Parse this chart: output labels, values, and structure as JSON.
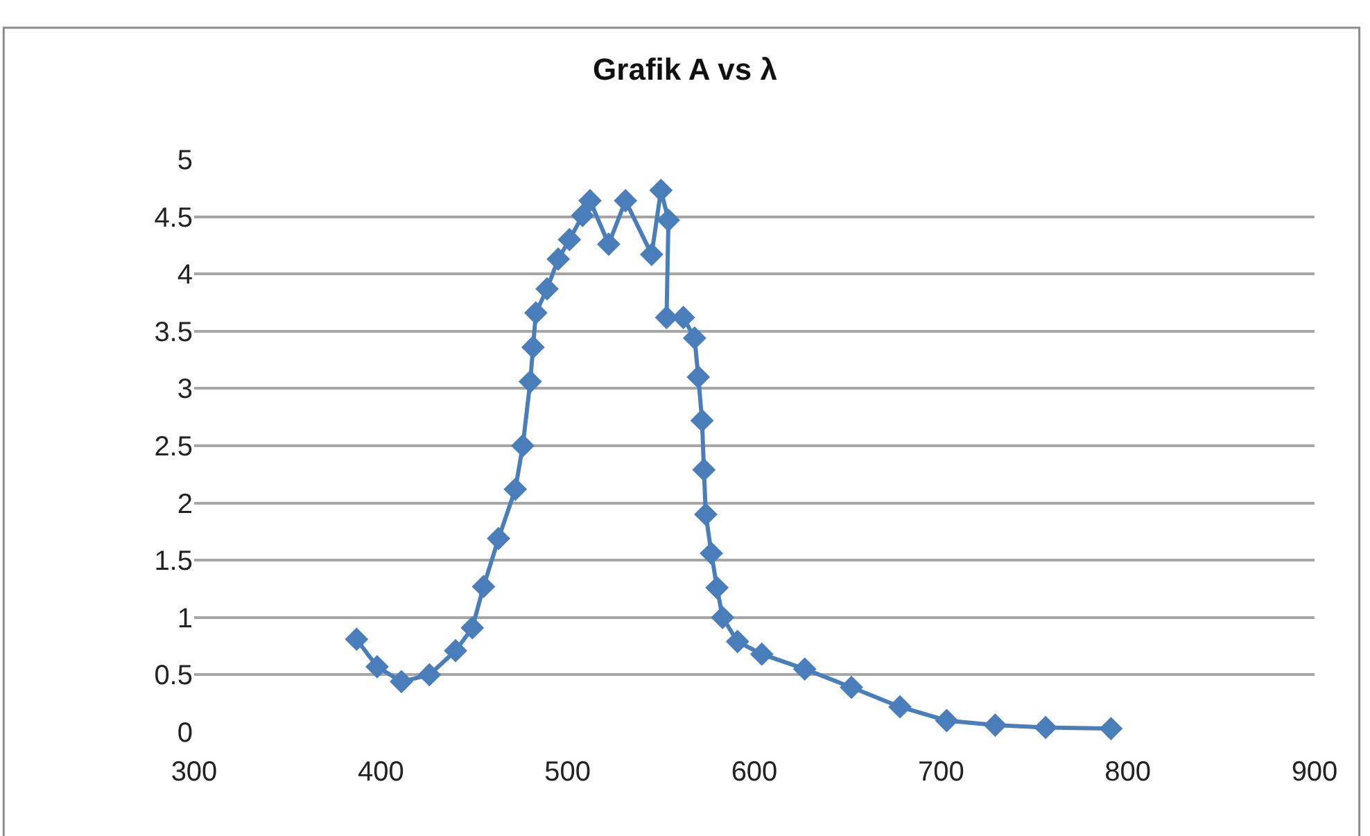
{
  "chart_data": {
    "type": "line",
    "title": "Grafik A vs λ",
    "series": [
      {
        "color": "#4a7ebb",
        "x": [
          387,
          398,
          411,
          426,
          440,
          449,
          455,
          463,
          472,
          476,
          480,
          481.5,
          483,
          489,
          495,
          501,
          508,
          512,
          522,
          531,
          545,
          550,
          554,
          553,
          562,
          568,
          570,
          572,
          573,
          574,
          577,
          580,
          583,
          591,
          604,
          627,
          652,
          678,
          703,
          729,
          756,
          791
        ],
        "values": [
          0.81,
          0.57,
          0.44,
          0.5,
          0.71,
          0.91,
          1.27,
          1.69,
          2.12,
          2.5,
          3.06,
          3.36,
          3.66,
          3.87,
          4.13,
          4.3,
          4.51,
          4.64,
          4.26,
          4.64,
          4.17,
          4.73,
          4.47,
          3.62,
          3.62,
          3.44,
          3.1,
          2.72,
          2.29,
          1.9,
          1.56,
          1.26,
          1.0,
          0.79,
          0.68,
          0.55,
          0.39,
          0.22,
          0.1,
          0.06,
          0.04,
          0.03
        ]
      }
    ],
    "xlim": [
      300,
      900
    ],
    "xticks": [
      300,
      400,
      500,
      600,
      700,
      800,
      900
    ],
    "ylim": [
      0,
      5
    ],
    "yticks": [
      0,
      0.5,
      1,
      1.5,
      2,
      2.5,
      3,
      3.5,
      4,
      4.5,
      5
    ],
    "grid": "y",
    "legend": false,
    "marker": "diamond",
    "line_style": "solid"
  }
}
